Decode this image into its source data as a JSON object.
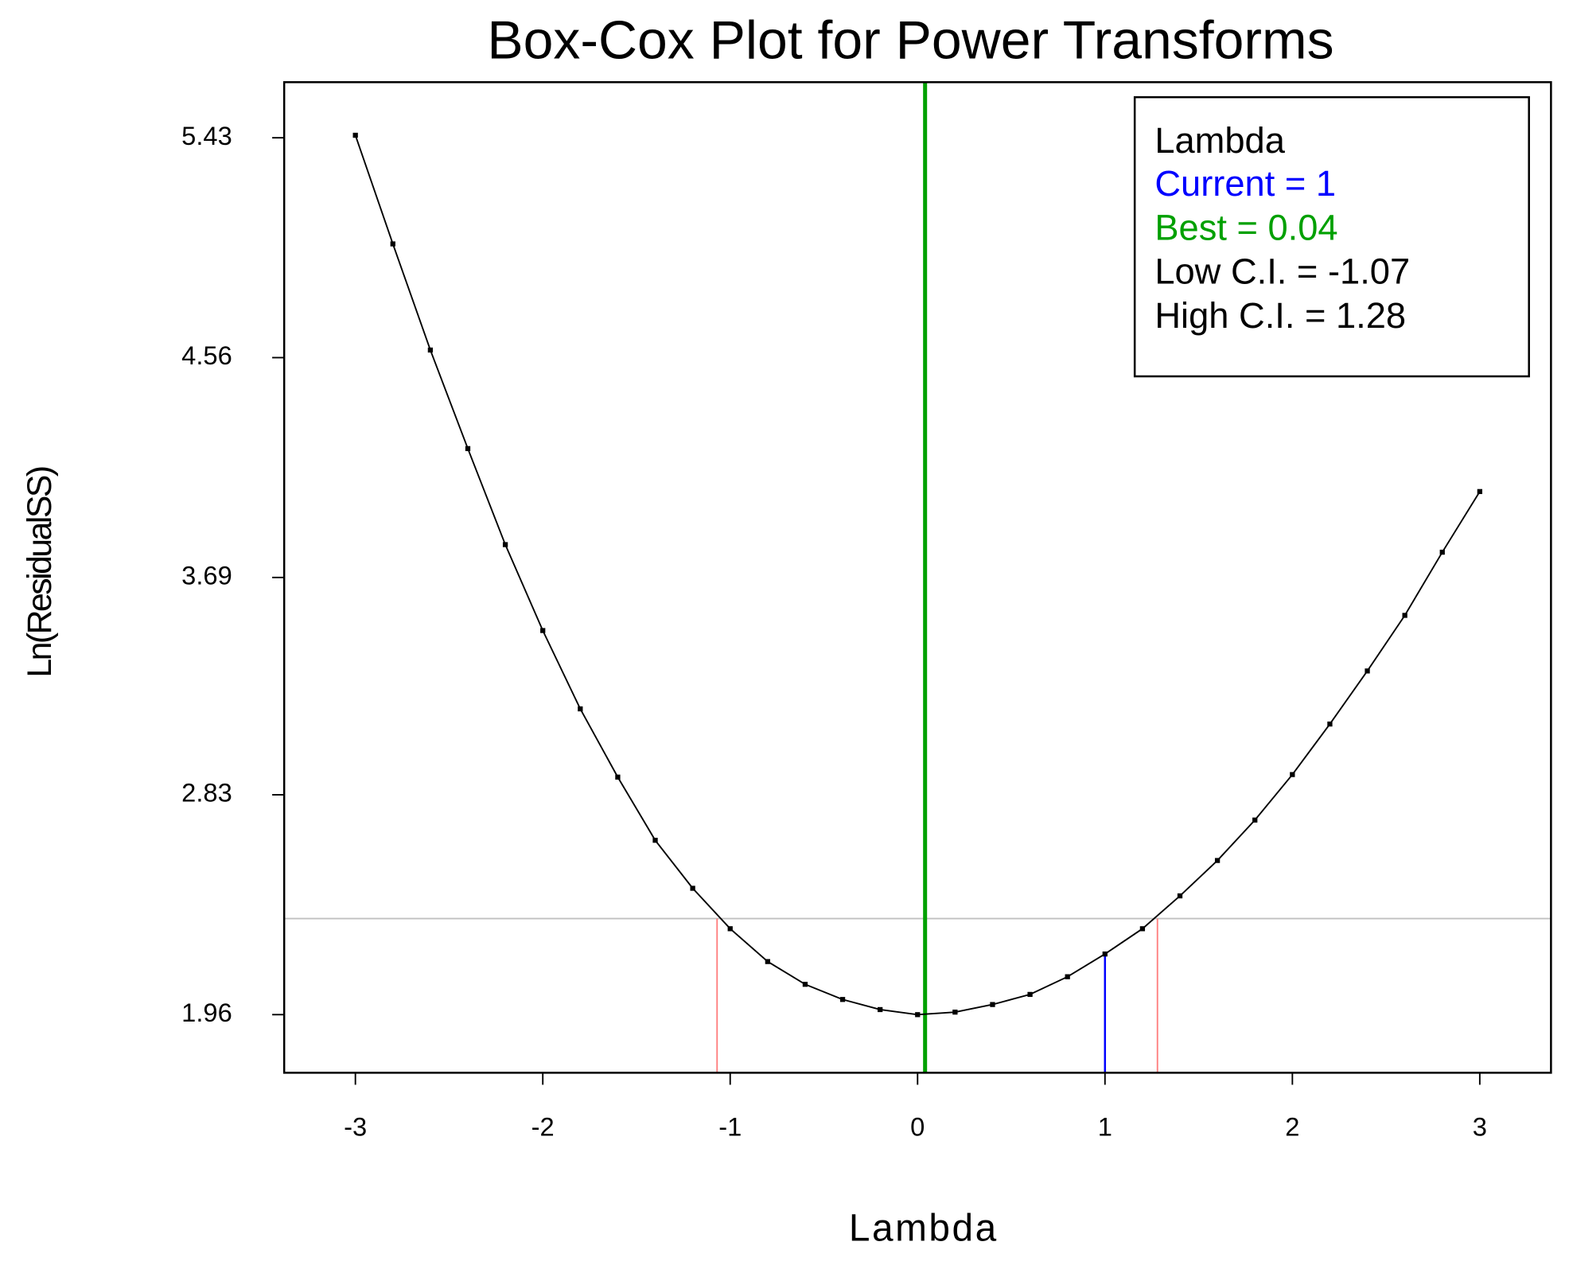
{
  "chart_data": {
    "type": "line",
    "title": "Box-Cox Plot for Power Transforms",
    "x_label": "Lambda",
    "y_label": "Ln(ResidualSS)",
    "x": [
      -3,
      -2.8,
      -2.6,
      -2.4,
      -2.2,
      -2,
      -1.8,
      -1.6,
      -1.4,
      -1.2,
      -1,
      -0.8,
      -0.6,
      -0.4,
      -0.2,
      0,
      0.2,
      0.4,
      0.6,
      0.8,
      1,
      1.2,
      1.4,
      1.6,
      1.8,
      2,
      2.2,
      2.4,
      2.6,
      2.8,
      3
    ],
    "values": [
      5.44,
      5.01,
      4.59,
      4.2,
      3.82,
      3.48,
      3.17,
      2.9,
      2.65,
      2.46,
      2.3,
      2.17,
      2.08,
      2.02,
      1.98,
      1.96,
      1.97,
      2.0,
      2.04,
      2.11,
      2.2,
      2.3,
      2.43,
      2.57,
      2.73,
      2.91,
      3.11,
      3.32,
      3.54,
      3.79,
      4.03
    ],
    "color": "#000000",
    "xlim": [
      -3.38,
      3.38
    ],
    "ylim": [
      1.73,
      5.65
    ],
    "xticks": [
      -3,
      -2,
      -1,
      0,
      1,
      2,
      3
    ],
    "yticks": [
      1.96,
      2.83,
      3.69,
      4.56,
      5.43
    ],
    "ci_threshold": 2.34,
    "ci_threshold_color": "#c0c0c0",
    "legend": {
      "title": "Lambda",
      "entries": [
        {
          "label": "Current = 1",
          "value": 1,
          "color": "#0000ff",
          "line_value": 2.2
        },
        {
          "label": "Best = 0.04",
          "value": 0.04,
          "color": "#00a000"
        },
        {
          "label": "Low C.I. = -1.07",
          "value": -1.07,
          "color": "#ff8080",
          "text_color": "#000000"
        },
        {
          "label": "High C.I. = 1.28",
          "value": 1.28,
          "color": "#ff8080",
          "text_color": "#000000"
        }
      ]
    }
  }
}
